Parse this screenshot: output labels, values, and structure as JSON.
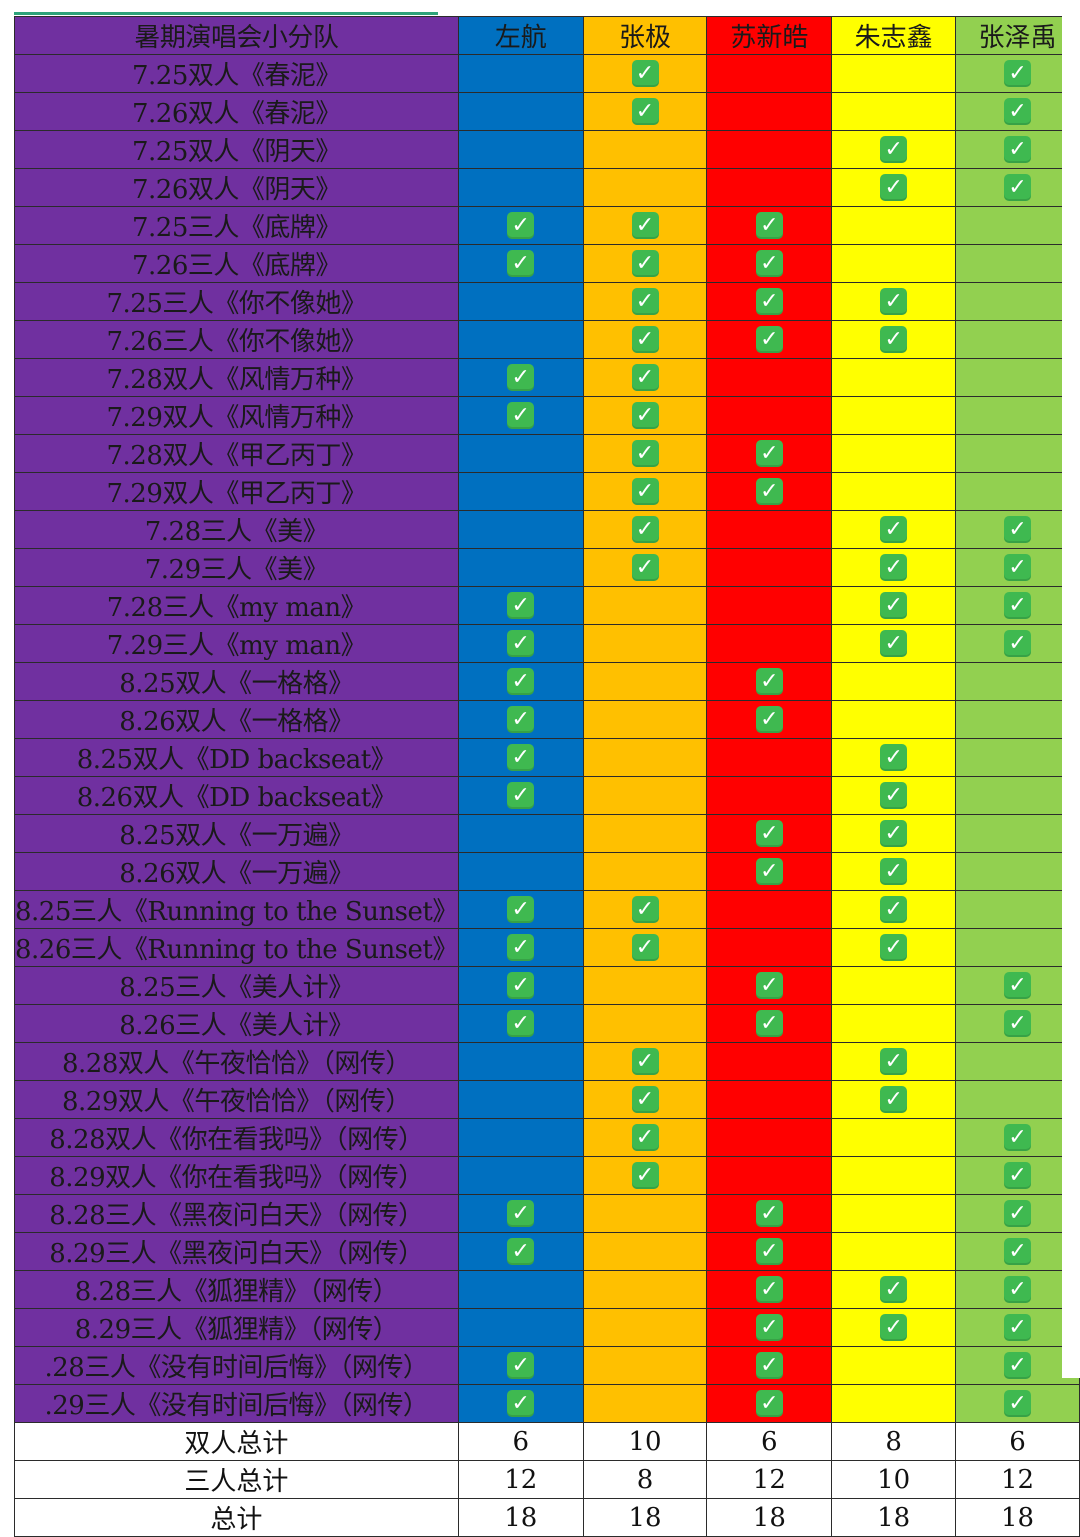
{
  "header_label": "暑期演唱会小分队",
  "members": [
    {
      "name": "左航",
      "color": "#0070c0"
    },
    {
      "name": "张极",
      "color": "#ffc000"
    },
    {
      "name": "苏新皓",
      "color": "#ff0000"
    },
    {
      "name": "朱志鑫",
      "color": "#ffff00"
    },
    {
      "name": "张泽禹",
      "color": "#92d050"
    }
  ],
  "check_icon": "check-mark-button-icon",
  "check_glyph": "✓",
  "rows": [
    {
      "label": "7.25双人《春泥》",
      "checks": [
        0,
        1,
        0,
        0,
        1
      ]
    },
    {
      "label": "7.26双人《春泥》",
      "checks": [
        0,
        1,
        0,
        0,
        1
      ]
    },
    {
      "label": "7.25双人《阴天》",
      "checks": [
        0,
        0,
        0,
        1,
        1
      ]
    },
    {
      "label": "7.26双人《阴天》",
      "checks": [
        0,
        0,
        0,
        1,
        1
      ]
    },
    {
      "label": "7.25三人《底牌》",
      "checks": [
        1,
        1,
        1,
        0,
        0
      ]
    },
    {
      "label": "7.26三人《底牌》",
      "checks": [
        1,
        1,
        1,
        0,
        0
      ]
    },
    {
      "label": "7.25三人《你不像她》",
      "checks": [
        0,
        1,
        1,
        1,
        0
      ]
    },
    {
      "label": "7.26三人《你不像她》",
      "checks": [
        0,
        1,
        1,
        1,
        0
      ]
    },
    {
      "label": "7.28双人《风情万种》",
      "checks": [
        1,
        1,
        0,
        0,
        0
      ]
    },
    {
      "label": "7.29双人《风情万种》",
      "checks": [
        1,
        1,
        0,
        0,
        0
      ]
    },
    {
      "label": "7.28双人《甲乙丙丁》",
      "checks": [
        0,
        1,
        1,
        0,
        0
      ]
    },
    {
      "label": "7.29双人《甲乙丙丁》",
      "checks": [
        0,
        1,
        1,
        0,
        0
      ]
    },
    {
      "label": "7.28三人《美》",
      "checks": [
        0,
        1,
        0,
        1,
        1
      ]
    },
    {
      "label": "7.29三人《美》",
      "checks": [
        0,
        1,
        0,
        1,
        1
      ]
    },
    {
      "label": "7.28三人《my man》",
      "checks": [
        1,
        0,
        0,
        1,
        1
      ]
    },
    {
      "label": "7.29三人《my man》",
      "checks": [
        1,
        0,
        0,
        1,
        1
      ]
    },
    {
      "label": "8.25双人《一格格》",
      "checks": [
        1,
        0,
        1,
        0,
        0
      ]
    },
    {
      "label": "8.26双人《一格格》",
      "checks": [
        1,
        0,
        1,
        0,
        0
      ]
    },
    {
      "label": "8.25双人《DD backseat》",
      "checks": [
        1,
        0,
        0,
        1,
        0
      ]
    },
    {
      "label": "8.26双人《DD backseat》",
      "checks": [
        1,
        0,
        0,
        1,
        0
      ]
    },
    {
      "label": "8.25双人《一万遍》",
      "checks": [
        0,
        0,
        1,
        1,
        0
      ]
    },
    {
      "label": "8.26双人《一万遍》",
      "checks": [
        0,
        0,
        1,
        1,
        0
      ]
    },
    {
      "label": "8.25三人《Running to the Sunset》",
      "checks": [
        1,
        1,
        0,
        1,
        0
      ]
    },
    {
      "label": "8.26三人《Running to the Sunset》",
      "checks": [
        1,
        1,
        0,
        1,
        0
      ]
    },
    {
      "label": "8.25三人《美人计》",
      "checks": [
        1,
        0,
        1,
        0,
        1
      ]
    },
    {
      "label": "8.26三人《美人计》",
      "checks": [
        1,
        0,
        1,
        0,
        1
      ]
    },
    {
      "label": "8.28双人《午夜恰恰》（网传）",
      "checks": [
        0,
        1,
        0,
        1,
        0
      ]
    },
    {
      "label": "8.29双人《午夜恰恰》（网传）",
      "checks": [
        0,
        1,
        0,
        1,
        0
      ]
    },
    {
      "label": "8.28双人《你在看我吗》（网传）",
      "checks": [
        0,
        1,
        0,
        0,
        1
      ]
    },
    {
      "label": "8.29双人《你在看我吗》（网传）",
      "checks": [
        0,
        1,
        0,
        0,
        1
      ]
    },
    {
      "label": "8.28三人《黑夜问白天》（网传）",
      "checks": [
        1,
        0,
        1,
        0,
        1
      ]
    },
    {
      "label": "8.29三人《黑夜问白天》（网传）",
      "checks": [
        1,
        0,
        1,
        0,
        1
      ]
    },
    {
      "label": "8.28三人《狐狸精》（网传）",
      "checks": [
        0,
        0,
        1,
        1,
        1
      ]
    },
    {
      "label": "8.29三人《狐狸精》（网传）",
      "checks": [
        0,
        0,
        1,
        1,
        1
      ]
    },
    {
      "label": ".28三人《没有时间后悔》（网传）",
      "checks": [
        1,
        0,
        1,
        0,
        1
      ]
    },
    {
      "label": ".29三人《没有时间后悔》（网传）",
      "checks": [
        1,
        0,
        1,
        0,
        1
      ]
    }
  ],
  "totals": [
    {
      "label": "双人总计",
      "values": [
        "6",
        "10",
        "6",
        "8",
        "6"
      ]
    },
    {
      "label": "三人总计",
      "values": [
        "12",
        "8",
        "12",
        "10",
        "12"
      ]
    },
    {
      "label": "总计",
      "values": [
        "18",
        "18",
        "18",
        "18",
        "18"
      ]
    }
  ]
}
